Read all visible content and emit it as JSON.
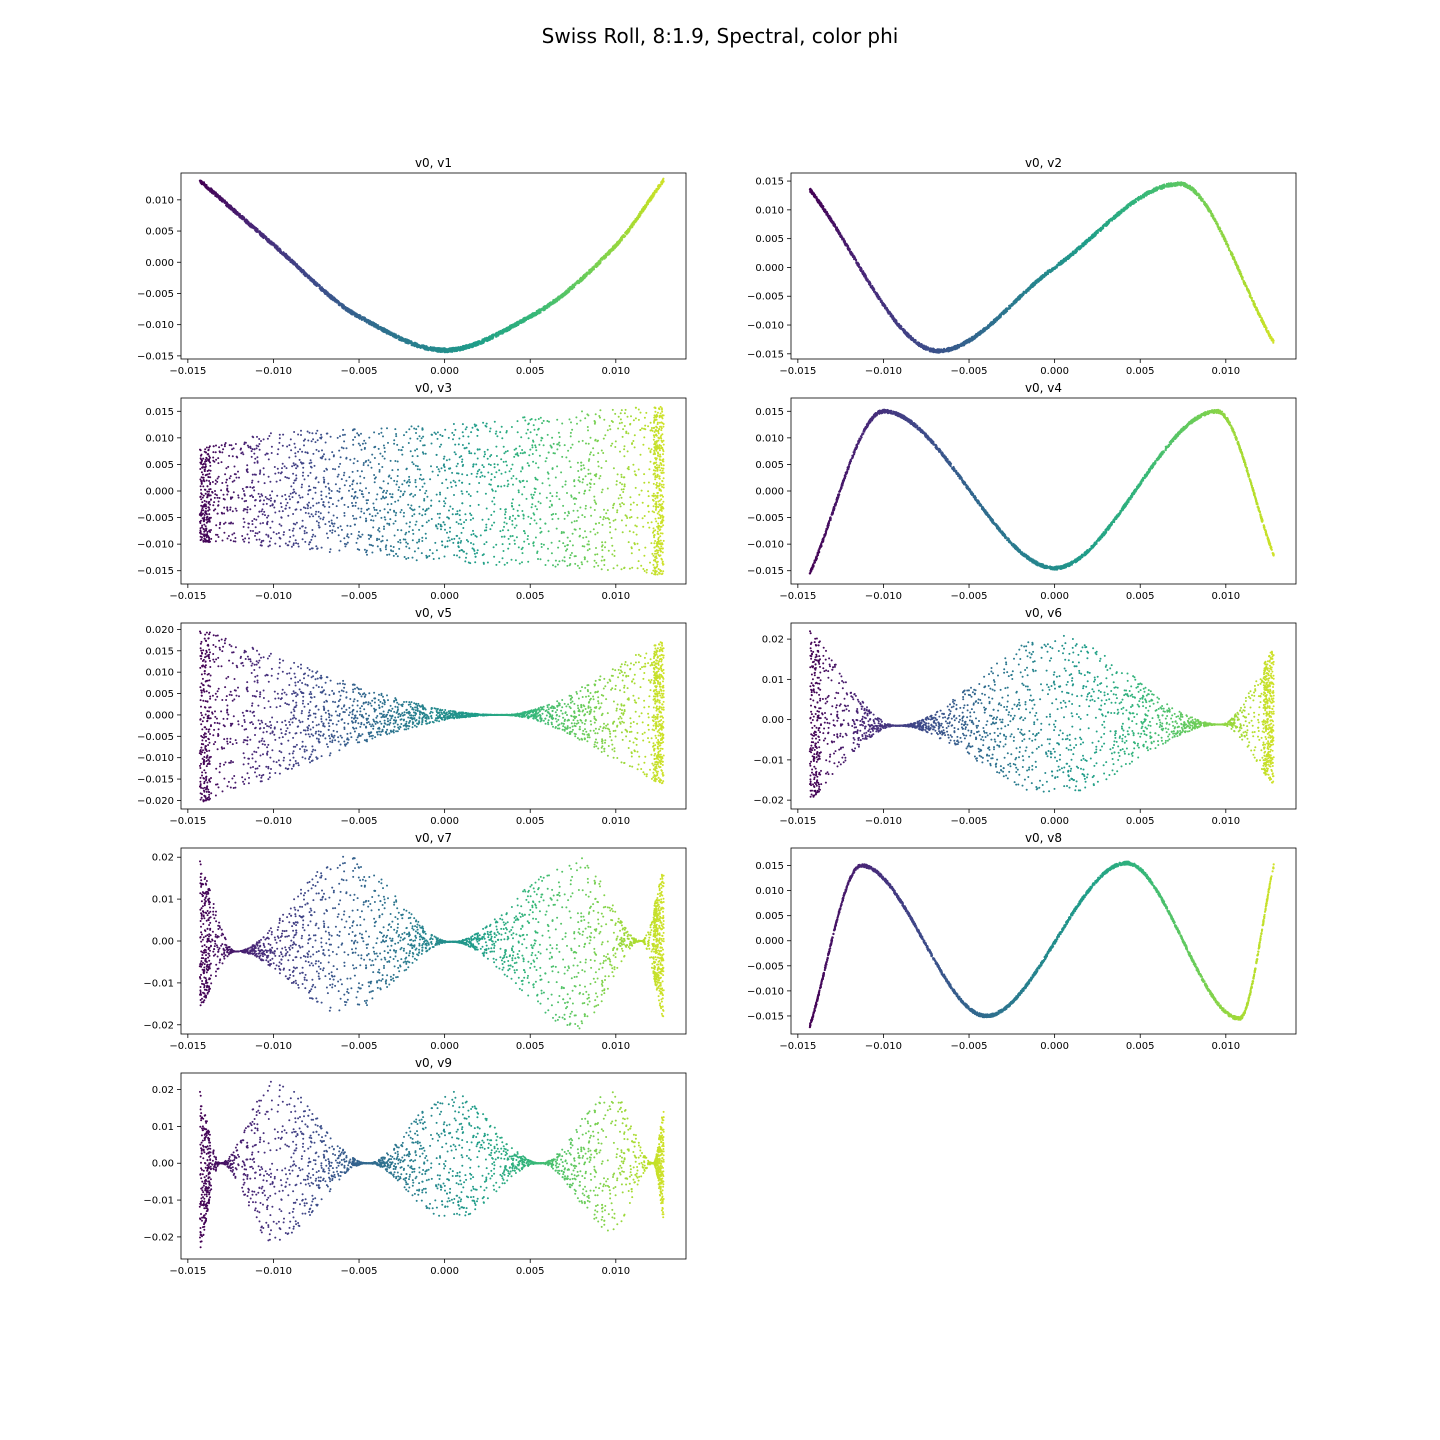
{
  "figure": {
    "title": "Swiss Roll, 8:1.9, Spectral, color phi"
  },
  "colormap": {
    "name": "viridis",
    "stops": [
      "#440154",
      "#482878",
      "#3e4989",
      "#31688e",
      "#26828e",
      "#1f9e89",
      "#35b779",
      "#6ece58",
      "#b5de2b",
      "#fde725"
    ],
    "color_variable": "phi"
  },
  "chart_data": [
    {
      "type": "scatter",
      "title": "v0, v1",
      "xlabel": "",
      "ylabel": "",
      "xlim": [
        -0.0154,
        0.0141
      ],
      "ylim": [
        -0.0155,
        0.0143
      ],
      "xticks": [
        "-0.015",
        "-0.010",
        "-0.005",
        "0.000",
        "0.005",
        "0.010"
      ],
      "yticks": [
        "-0.015",
        "-0.010",
        "-0.005",
        "0.000",
        "0.005",
        "0.010"
      ],
      "series": [
        {
          "x": [
            -0.0143,
            -0.01,
            -0.005,
            0.0,
            0.005,
            0.01,
            0.0128
          ],
          "y": [
            0.0131,
            0.0028,
            -0.0087,
            -0.0141,
            -0.0087,
            0.0027,
            0.0132
          ]
        }
      ]
    },
    {
      "type": "scatter",
      "title": "v0, v2",
      "xlabel": "",
      "ylabel": "",
      "xlim": [
        -0.0154,
        0.0141
      ],
      "ylim": [
        -0.0159,
        0.0164
      ],
      "xticks": [
        "-0.015",
        "-0.010",
        "-0.005",
        "0.000",
        "0.005",
        "0.010"
      ],
      "yticks": [
        "-0.015",
        "-0.010",
        "-0.005",
        "0.000",
        "0.005",
        "0.010",
        "0.015"
      ],
      "series": [
        {
          "x": [
            -0.0143,
            -0.0068,
            0.0,
            0.0073,
            0.0128
          ],
          "y": [
            0.0135,
            -0.0145,
            0.0,
            0.0145,
            -0.013
          ]
        }
      ]
    },
    {
      "type": "scatter",
      "title": "v0, v3",
      "xlabel": "",
      "ylabel": "",
      "xlim": [
        -0.0154,
        0.0141
      ],
      "ylim": [
        -0.0175,
        0.0175
      ],
      "xticks": [
        "-0.015",
        "-0.010",
        "-0.005",
        "0.000",
        "0.005",
        "0.010"
      ],
      "yticks": [
        "-0.015",
        "-0.010",
        "-0.005",
        "0.000",
        "0.005",
        "0.010",
        "0.015"
      ],
      "series": [
        {
          "x": [
            -0.0143,
            -0.01,
            0.0,
            0.01,
            0.0128
          ],
          "y_upper": [
            0.008,
            0.011,
            0.0125,
            0.0155,
            0.016
          ],
          "y_lower": [
            -0.0095,
            -0.0105,
            -0.0135,
            -0.015,
            -0.016
          ]
        }
      ]
    },
    {
      "type": "scatter",
      "title": "v0, v4",
      "xlabel": "",
      "ylabel": "",
      "xlim": [
        -0.0154,
        0.0141
      ],
      "ylim": [
        -0.0175,
        0.0175
      ],
      "xticks": [
        "-0.015",
        "-0.010",
        "-0.005",
        "0.000",
        "0.005",
        "0.010"
      ],
      "yticks": [
        "-0.015",
        "-0.010",
        "-0.005",
        "0.000",
        "0.005",
        "0.010",
        "0.015"
      ],
      "series": [
        {
          "x": [
            -0.0143,
            -0.01,
            0.0,
            0.0095,
            0.0128
          ],
          "y": [
            -0.0155,
            0.015,
            -0.0145,
            0.015,
            -0.012
          ]
        }
      ]
    },
    {
      "type": "scatter",
      "title": "v0, v5",
      "xlabel": "",
      "ylabel": "",
      "xlim": [
        -0.0154,
        0.0141
      ],
      "ylim": [
        -0.022,
        0.0215
      ],
      "xticks": [
        "-0.015",
        "-0.010",
        "-0.005",
        "0.000",
        "0.005",
        "0.010"
      ],
      "yticks": [
        "-0.020",
        "-0.015",
        "-0.010",
        "-0.005",
        "0.000",
        "0.005",
        "0.010",
        "0.015",
        "0.020"
      ],
      "series": [
        {
          "x": [
            -0.0143,
            0.0033,
            0.0128
          ],
          "y_upper": [
            0.02,
            0.0,
            0.0175
          ],
          "y_lower": [
            -0.0205,
            0.0,
            -0.0165
          ]
        }
      ]
    },
    {
      "type": "scatter",
      "title": "v0, v6",
      "xlabel": "",
      "ylabel": "",
      "xlim": [
        -0.0154,
        0.0141
      ],
      "ylim": [
        -0.0222,
        0.024
      ],
      "xticks": [
        "-0.015",
        "-0.010",
        "-0.005",
        "0.000",
        "0.005",
        "0.010"
      ],
      "yticks": [
        "-0.02",
        "-0.01",
        "0.00",
        "0.01",
        "0.02"
      ],
      "series": [
        {
          "x": [
            -0.0143,
            -0.0092,
            0.0,
            0.0097,
            0.0128
          ],
          "y_upper": [
            0.0225,
            -0.0015,
            0.021,
            -0.0012,
            0.018
          ],
          "y_lower": [
            -0.02,
            -0.0015,
            -0.019,
            -0.0012,
            -0.0165
          ]
        }
      ]
    },
    {
      "type": "scatter",
      "title": "v0, v7",
      "xlabel": "",
      "ylabel": "",
      "xlim": [
        -0.0154,
        0.0141
      ],
      "ylim": [
        -0.0222,
        0.0222
      ],
      "xticks": [
        "-0.015",
        "-0.010",
        "-0.005",
        "0.000",
        "0.005",
        "0.010"
      ],
      "yticks": [
        "-0.02",
        "-0.01",
        "0.00",
        "0.01",
        "0.02"
      ],
      "series": [
        {
          "x": [
            -0.0143,
            -0.0122,
            -0.0058,
            0.0004,
            0.0078,
            0.0115,
            0.0128
          ],
          "y_upper": [
            0.0195,
            -0.0025,
            0.0205,
            -0.0002,
            0.02,
            0.0,
            0.0178
          ],
          "y_lower": [
            -0.0162,
            -0.0025,
            -0.0175,
            -0.0002,
            -0.021,
            0.0,
            -0.0195
          ]
        }
      ]
    },
    {
      "type": "scatter",
      "title": "v0, v8",
      "xlabel": "",
      "ylabel": "",
      "xlim": [
        -0.0154,
        0.0141
      ],
      "ylim": [
        -0.0186,
        0.0185
      ],
      "xticks": [
        "-0.015",
        "-0.010",
        "-0.005",
        "0.000",
        "0.005",
        "0.010"
      ],
      "yticks": [
        "-0.015",
        "-0.010",
        "-0.005",
        "0.000",
        "0.005",
        "0.010",
        "0.015"
      ],
      "series": [
        {
          "x": [
            -0.0143,
            -0.0113,
            -0.004,
            0.0042,
            0.0108,
            0.0128
          ],
          "y": [
            -0.017,
            0.015,
            -0.015,
            0.0155,
            -0.0155,
            0.015
          ]
        }
      ]
    },
    {
      "type": "scatter",
      "title": "v0, v9",
      "xlabel": "",
      "ylabel": "",
      "xlim": [
        -0.0154,
        0.0141
      ],
      "ylim": [
        -0.026,
        0.0245
      ],
      "xticks": [
        "-0.015",
        "-0.010",
        "-0.005",
        "0.000",
        "0.005",
        "0.010"
      ],
      "yticks": [
        "-0.02",
        "-0.01",
        "0.00",
        "0.01",
        "0.02"
      ],
      "series": [
        {
          "x": [
            -0.0143,
            -0.0131,
            -0.01,
            -0.0045,
            0.0003,
            0.0056,
            0.0098,
            0.0122,
            0.0128
          ],
          "y_upper": [
            0.02,
            0.0,
            0.0225,
            0.0,
            0.0195,
            0.0,
            0.0195,
            0.0,
            0.016
          ],
          "y_lower": [
            -0.0245,
            0.0,
            -0.0215,
            0.0,
            -0.016,
            0.0,
            -0.0185,
            0.0,
            -0.0165
          ]
        }
      ]
    }
  ]
}
